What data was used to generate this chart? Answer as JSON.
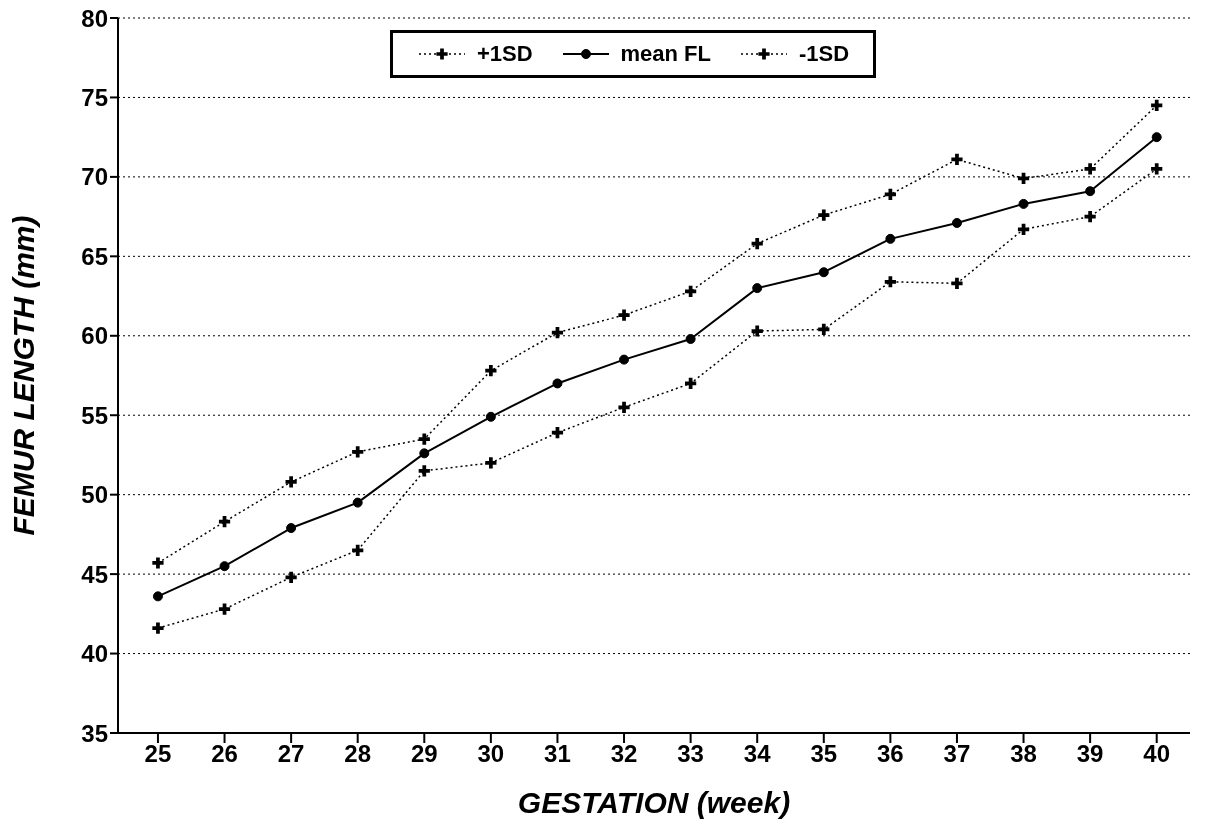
{
  "chart_data": {
    "type": "line",
    "xlabel": "GESTATION (week)",
    "ylabel": "FEMUR  LENGTH (mm)",
    "x": [
      25,
      26,
      27,
      28,
      29,
      30,
      31,
      32,
      33,
      34,
      35,
      36,
      37,
      38,
      39,
      40
    ],
    "series": [
      {
        "name": "+1SD",
        "color": "#000000",
        "marker": "cross",
        "line_style": "dotted",
        "values": [
          45.7,
          48.3,
          50.8,
          52.7,
          53.5,
          57.8,
          60.2,
          61.3,
          62.8,
          65.8,
          67.6,
          68.9,
          71.1,
          69.9,
          70.5,
          74.5
        ]
      },
      {
        "name": "mean FL",
        "color": "#000000",
        "marker": "circle",
        "line_style": "solid",
        "values": [
          43.6,
          45.5,
          47.9,
          49.5,
          52.6,
          54.9,
          57,
          58.5,
          59.8,
          63,
          64,
          66.1,
          67.1,
          68.3,
          69.1,
          72.5
        ]
      },
      {
        "name": "-1SD",
        "color": "#000000",
        "marker": "cross",
        "line_style": "dotted",
        "values": [
          41.6,
          42.8,
          44.8,
          46.5,
          51.5,
          52,
          53.9,
          55.5,
          57,
          60.3,
          60.4,
          63.4,
          63.3,
          66.7,
          67.5,
          70.5
        ]
      }
    ],
    "xlim": [
      24.4,
      40.5
    ],
    "xticks": [
      25,
      26,
      27,
      28,
      29,
      30,
      31,
      32,
      33,
      34,
      35,
      36,
      37,
      38,
      39,
      40
    ],
    "ylim": [
      35,
      80
    ],
    "yticks": [
      35,
      40,
      45,
      50,
      55,
      60,
      65,
      70,
      75,
      80
    ],
    "grid": "y",
    "legend": "top"
  }
}
